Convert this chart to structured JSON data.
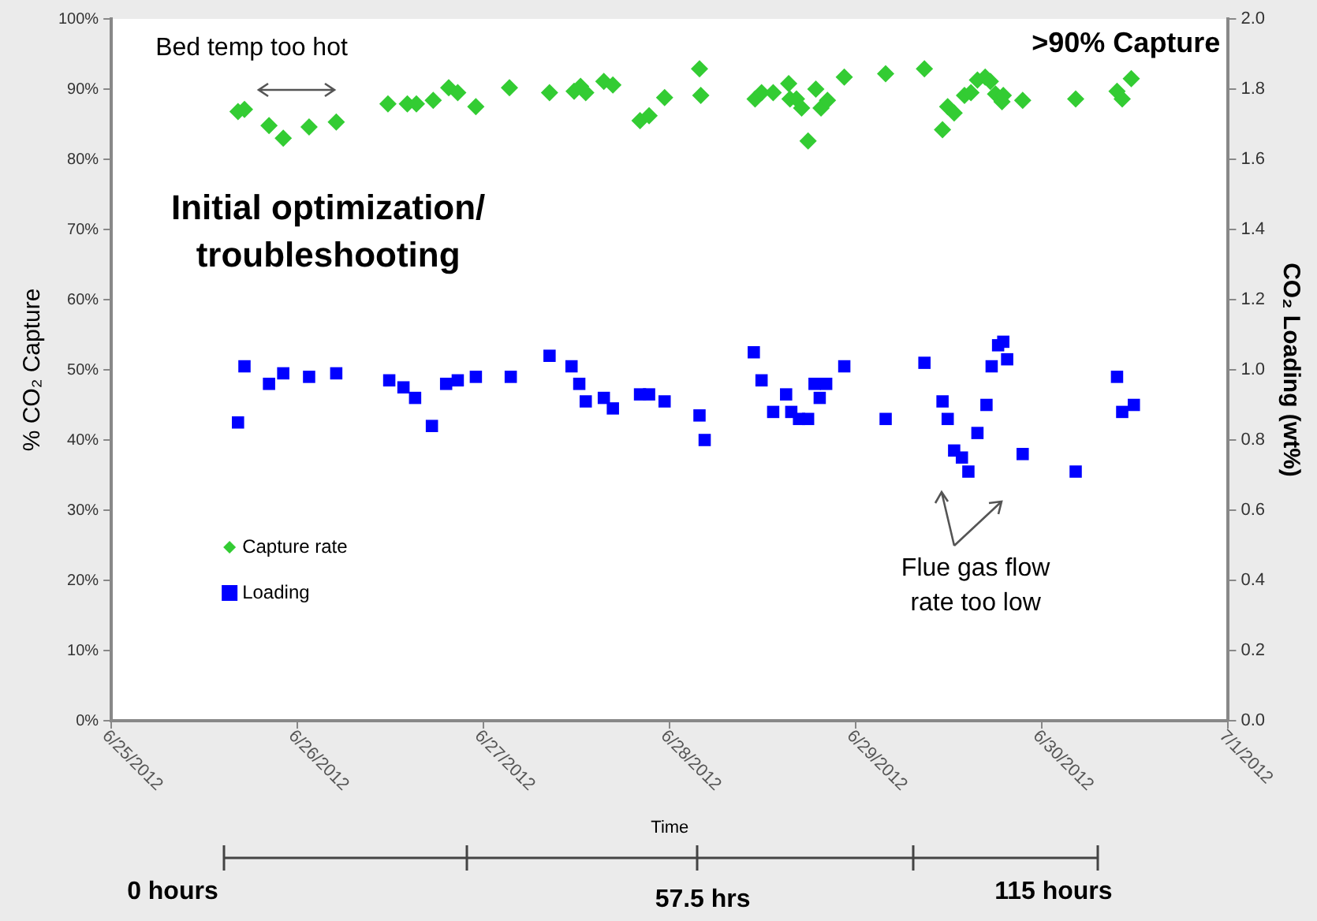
{
  "chart_data": {
    "type": "scatter",
    "xlabel": "Time",
    "ylabel": "% CO₂ Capture",
    "y2label": "CO₂ Loading (wt%)",
    "xlim": [
      "2012-06-25",
      "2012-07-01"
    ],
    "xticks": [
      {
        "value": "2012-06-25",
        "label": "6/25/2012"
      },
      {
        "value": "2012-06-26",
        "label": "6/26/2012"
      },
      {
        "value": "2012-06-27",
        "label": "6/27/2012"
      },
      {
        "value": "2012-06-28",
        "label": "6/28/2012"
      },
      {
        "value": "2012-06-29",
        "label": "6/29/2012"
      },
      {
        "value": "2012-06-30",
        "label": "6/30/2012"
      },
      {
        "value": "2012-07-01",
        "label": "7/1/2012"
      }
    ],
    "ylim": [
      0,
      100
    ],
    "yticks": [
      {
        "value": 0,
        "label": "0%"
      },
      {
        "value": 10,
        "label": "10%"
      },
      {
        "value": 20,
        "label": "20%"
      },
      {
        "value": 30,
        "label": "30%"
      },
      {
        "value": 40,
        "label": "40%"
      },
      {
        "value": 50,
        "label": "50%"
      },
      {
        "value": 60,
        "label": "60%"
      },
      {
        "value": 70,
        "label": "70%"
      },
      {
        "value": 80,
        "label": "80%"
      },
      {
        "value": 90,
        "label": "90%"
      },
      {
        "value": 100,
        "label": "100%"
      }
    ],
    "y2lim": [
      0,
      2
    ],
    "y2ticks": [
      {
        "value": 0,
        "label": "0.0"
      },
      {
        "value": 0.2,
        "label": "0.2"
      },
      {
        "value": 0.4,
        "label": "0.4"
      },
      {
        "value": 0.6,
        "label": "0.6"
      },
      {
        "value": 0.8,
        "label": "0.8"
      },
      {
        "value": 1,
        "label": "1.0"
      },
      {
        "value": 1.2,
        "label": "1.2"
      },
      {
        "value": 1.4,
        "label": "1.4"
      },
      {
        "value": 1.6,
        "label": "1.6"
      },
      {
        "value": 1.8,
        "label": "1.8"
      },
      {
        "value": 2,
        "label": "2.0"
      }
    ],
    "grid": false,
    "legend": "left",
    "series": [
      {
        "name": "Capture rate",
        "color": "#33cc33",
        "marker": "diamond",
        "x": [
          "2012-06-25T16:20",
          "2012-06-25T17:10",
          "2012-06-25T20:20",
          "2012-06-25T22:10",
          "2012-06-26T01:30",
          "2012-06-26T05:00",
          "2012-06-26T11:40",
          "2012-06-26T14:10",
          "2012-06-26T15:20",
          "2012-06-26T17:30",
          "2012-06-26T19:30",
          "2012-06-26T20:40",
          "2012-06-26T23:00",
          "2012-06-27T03:20",
          "2012-06-27T08:30",
          "2012-06-27T11:40",
          "2012-06-27T12:30",
          "2012-06-27T13:10",
          "2012-06-27T15:30",
          "2012-06-27T16:40",
          "2012-06-27T20:10",
          "2012-06-27T21:20",
          "2012-06-27T23:20",
          "2012-06-28T03:50",
          "2012-06-28T04:00",
          "2012-06-28T11:00",
          "2012-06-28T11:50",
          "2012-06-28T13:20",
          "2012-06-28T15:20",
          "2012-06-28T15:30",
          "2012-06-28T16:20",
          "2012-06-28T17:00",
          "2012-06-28T17:50",
          "2012-06-28T18:50",
          "2012-06-28T19:30",
          "2012-06-28T20:20",
          "2012-06-28T22:30",
          "2012-06-29T03:50",
          "2012-06-29T08:50",
          "2012-06-29T11:10",
          "2012-06-29T11:50",
          "2012-06-29T12:40",
          "2012-06-29T14:00",
          "2012-06-29T14:50",
          "2012-06-29T15:40",
          "2012-06-29T16:40",
          "2012-06-29T17:20",
          "2012-06-29T18:00",
          "2012-06-29T18:50",
          "2012-06-29T19:00",
          "2012-06-29T21:30",
          "2012-06-30T04:20",
          "2012-06-30T09:40",
          "2012-06-30T10:20",
          "2012-06-30T11:30"
        ],
        "values": [
          86.8,
          87.1,
          84.8,
          83.0,
          84.6,
          85.3,
          87.9,
          87.9,
          87.9,
          88.4,
          90.2,
          89.5,
          87.5,
          90.2,
          89.5,
          89.7,
          90.4,
          89.5,
          91.1,
          90.6,
          85.5,
          86.2,
          88.8,
          92.9,
          89.1,
          88.6,
          89.5,
          89.5,
          90.8,
          88.6,
          88.6,
          87.3,
          82.6,
          90.0,
          87.3,
          88.4,
          91.7,
          92.2,
          92.9,
          84.2,
          87.5,
          86.6,
          89.1,
          89.5,
          91.3,
          91.7,
          91.1,
          89.3,
          88.2,
          89.1,
          88.4,
          88.6,
          89.7,
          88.6,
          91.5
        ]
      },
      {
        "name": "Loading",
        "color": "#0000ff",
        "marker": "square",
        "axis": "y2",
        "x": [
          "2012-06-25T16:20",
          "2012-06-25T17:10",
          "2012-06-25T20:20",
          "2012-06-25T22:10",
          "2012-06-26T01:30",
          "2012-06-26T05:00",
          "2012-06-26T11:50",
          "2012-06-26T13:40",
          "2012-06-26T15:10",
          "2012-06-26T17:20",
          "2012-06-26T19:10",
          "2012-06-26T20:40",
          "2012-06-26T23:00",
          "2012-06-27T03:30",
          "2012-06-27T08:30",
          "2012-06-27T11:20",
          "2012-06-27T12:20",
          "2012-06-27T13:10",
          "2012-06-27T15:30",
          "2012-06-27T16:40",
          "2012-06-27T20:10",
          "2012-06-27T21:20",
          "2012-06-27T23:20",
          "2012-06-28T03:50",
          "2012-06-28T04:30",
          "2012-06-28T10:50",
          "2012-06-28T11:50",
          "2012-06-28T13:20",
          "2012-06-28T15:00",
          "2012-06-28T15:40",
          "2012-06-28T16:40",
          "2012-06-28T17:50",
          "2012-06-28T18:40",
          "2012-06-28T19:20",
          "2012-06-28T20:10",
          "2012-06-28T22:30",
          "2012-06-29T03:50",
          "2012-06-29T08:50",
          "2012-06-29T11:10",
          "2012-06-29T11:50",
          "2012-06-29T12:40",
          "2012-06-29T13:40",
          "2012-06-29T14:30",
          "2012-06-29T15:40",
          "2012-06-29T16:50",
          "2012-06-29T17:30",
          "2012-06-29T18:20",
          "2012-06-29T19:00",
          "2012-06-29T19:30",
          "2012-06-29T21:30",
          "2012-06-30T04:20",
          "2012-06-30T09:40",
          "2012-06-30T10:20",
          "2012-06-30T11:50"
        ],
        "values": [
          0.85,
          1.01,
          0.96,
          0.99,
          0.98,
          0.99,
          0.97,
          0.95,
          0.92,
          0.84,
          0.96,
          0.97,
          0.98,
          0.98,
          1.04,
          1.01,
          0.96,
          0.91,
          0.92,
          0.89,
          0.93,
          0.93,
          0.91,
          0.87,
          0.8,
          1.05,
          0.97,
          0.88,
          0.93,
          0.88,
          0.86,
          0.86,
          0.96,
          0.92,
          0.96,
          1.01,
          0.86,
          1.02,
          0.91,
          0.86,
          0.77,
          0.75,
          0.71,
          0.82,
          0.9,
          1.01,
          1.07,
          1.08,
          1.03,
          0.76,
          0.71,
          0.98,
          0.88,
          0.9
        ]
      }
    ],
    "annotations": [
      "Bed temp too hot",
      ">90% Capture",
      "Initial optimization/ troubleshooting",
      "Flue gas flow rate too low",
      "0 hours",
      "57.5 hrs",
      "115 hours"
    ]
  }
}
